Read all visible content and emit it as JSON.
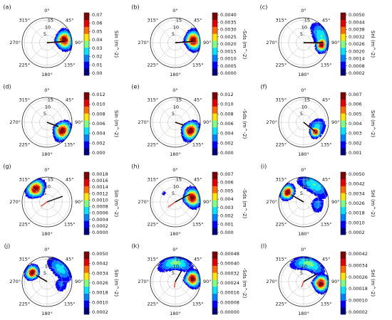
{
  "direction_labels": [
    "0°",
    "45°",
    "90°",
    "135°",
    "180°",
    "225°",
    "270°",
    "315°"
  ],
  "radius_labels": [
    "5",
    "10",
    "15"
  ],
  "colormap": [
    "#00007f",
    "#0000ff",
    "#0080ff",
    "#00e5ff",
    "#7fff7f",
    "#ffe500",
    "#ff6a00",
    "#e50000",
    "#7f0000"
  ],
  "chart_data": [
    {
      "type": "polar-contour",
      "panel": "(a)",
      "colorbar_label": "Sin (m^-2)",
      "colorbar_ticks": [
        "0.07",
        "0.06",
        "0.05",
        "0.04",
        "0.03",
        "0.02",
        "0.01",
        "0.00"
      ],
      "blobs": [
        {
          "dir": 80,
          "r": 11,
          "sdir": 18,
          "sr": 3.2,
          "peak": 1.0
        }
      ],
      "vectors": [
        {
          "dir": 88,
          "r": 11,
          "color": "#e04b3a"
        },
        {
          "dir": 86,
          "r": 11,
          "color": "#000000"
        }
      ]
    },
    {
      "type": "polar-contour",
      "panel": "(b)",
      "colorbar_label": "-Sds (m^-2)",
      "colorbar_ticks": [
        "0.0040",
        "0.0035",
        "0.0030",
        "0.0025",
        "0.0020",
        "0.0015",
        "0.0010",
        "0.0005",
        "0.0000"
      ],
      "blobs": [
        {
          "dir": 82,
          "r": 11.5,
          "sdir": 18,
          "sr": 3.2,
          "peak": 1.0
        }
      ],
      "vectors": [
        {
          "dir": 88,
          "r": 12,
          "color": "#e04b3a"
        },
        {
          "dir": 86,
          "r": 12,
          "color": "#000000"
        }
      ]
    },
    {
      "type": "polar-contour",
      "panel": "(c)",
      "colorbar_label": "Snl (m^-2)",
      "colorbar_ticks": [
        "0.0050",
        "0.0044",
        "0.0038",
        "0.0032",
        "0.0026",
        "0.0020",
        "0.0014",
        "0.0008",
        "0.0002"
      ],
      "blobs": [
        {
          "dir": 95,
          "r": 11.5,
          "sdir": 14,
          "sr": 2.2,
          "peak": 1.0
        },
        {
          "dir": 70,
          "r": 12,
          "sdir": 30,
          "sr": 3.5,
          "peak": 0.45
        }
      ],
      "vectors": [
        {
          "dir": 92,
          "r": 13,
          "color": "#e04b3a"
        },
        {
          "dir": 90,
          "r": 13,
          "color": "#000000"
        }
      ]
    },
    {
      "type": "polar-contour",
      "panel": "(d)",
      "colorbar_label": "Sin (m^-2)",
      "colorbar_ticks": [
        "0.012",
        "0.010",
        "0.008",
        "0.006",
        "0.004",
        "0.002",
        "0.000"
      ],
      "blobs": [
        {
          "dir": 118,
          "r": 11,
          "sdir": 18,
          "sr": 3.2,
          "peak": 1.0
        }
      ],
      "vectors": [
        {
          "dir": 112,
          "r": 8,
          "color": "#e04b3a"
        },
        {
          "dir": 110,
          "r": 8,
          "color": "#000000"
        }
      ]
    },
    {
      "type": "polar-contour",
      "panel": "(e)",
      "colorbar_label": "-Sds (m^-2)",
      "colorbar_ticks": [
        "0.012",
        "0.010",
        "0.008",
        "0.006",
        "0.004",
        "0.002",
        "0.000"
      ],
      "blobs": [
        {
          "dir": 118,
          "r": 11,
          "sdir": 18,
          "sr": 3.2,
          "peak": 1.0
        }
      ],
      "vectors": [
        {
          "dir": 110,
          "r": 6,
          "color": "#e04b3a"
        },
        {
          "dir": 108,
          "r": 6,
          "color": "#000000"
        }
      ]
    },
    {
      "type": "polar-contour",
      "panel": "(f)",
      "colorbar_label": "Snl (m^-2)",
      "colorbar_ticks": [
        "0.007",
        "0.006",
        "0.005",
        "0.004",
        "0.003",
        "0.002",
        "0.001"
      ],
      "blobs": [
        {
          "dir": 128,
          "r": 9.5,
          "sdir": 12,
          "sr": 2.2,
          "peak": 1.0
        },
        {
          "dir": 108,
          "r": 9,
          "sdir": 22,
          "sr": 3.5,
          "peak": 0.4
        }
      ],
      "vectors": [
        {
          "dir": 130,
          "r": 9,
          "color": "#e04b3a"
        },
        {
          "dir": 128,
          "r": 9,
          "color": "#000000"
        }
      ]
    },
    {
      "type": "polar-contour",
      "panel": "(g)",
      "colorbar_label": "Sin (m^-2)",
      "colorbar_ticks": [
        "0.0018",
        "0.0016",
        "0.0014",
        "0.0012",
        "0.0010",
        "0.0008",
        "0.0006",
        "0.0004",
        "0.0002",
        "0.0000"
      ],
      "blobs": [
        {
          "dir": 318,
          "r": 11,
          "sdir": 18,
          "sr": 3.2,
          "peak": 1.0
        }
      ],
      "vectors": [
        {
          "dir": 235,
          "r": 5,
          "color": "#e04b3a"
        },
        {
          "dir": 70,
          "r": 11,
          "color": "#000000"
        }
      ]
    },
    {
      "type": "polar-contour",
      "panel": "(h)",
      "colorbar_label": "-Sds (m^-2)",
      "colorbar_ticks": [
        "0.007",
        "0.006",
        "0.005",
        "0.004",
        "0.003",
        "0.002",
        "0.001",
        "0.000"
      ],
      "blobs": [
        {
          "dir": 75,
          "r": 11,
          "sdir": 18,
          "sr": 3.2,
          "peak": 1.0
        },
        {
          "dir": 305,
          "r": 9,
          "sdir": 8,
          "sr": 1.2,
          "peak": 0.2
        }
      ],
      "vectors": [
        {
          "dir": 235,
          "r": 6,
          "color": "#e04b3a"
        },
        {
          "dir": 62,
          "r": 11,
          "color": "#000000"
        }
      ]
    },
    {
      "type": "polar-contour",
      "panel": "(i)",
      "colorbar_label": "Snl (m^-2)",
      "colorbar_ticks": [
        "0.0050",
        "0.0042",
        "0.0034",
        "0.0026",
        "0.0018",
        "0.0010",
        "0.0002"
      ],
      "blobs": [
        {
          "dir": 300,
          "r": 12,
          "sdir": 14,
          "sr": 2.5,
          "peak": 1.0
        },
        {
          "dir": 30,
          "r": 13,
          "sdir": 30,
          "sr": 3.5,
          "peak": 0.45
        },
        {
          "dir": 100,
          "r": 9,
          "sdir": 22,
          "sr": 3,
          "peak": 0.3
        }
      ],
      "vectors": [
        {
          "dir": 300,
          "r": 10,
          "color": "#e04b3a"
        },
        {
          "dir": 300,
          "r": 9,
          "color": "#000000"
        }
      ]
    },
    {
      "type": "polar-contour",
      "panel": "(j)",
      "colorbar_label": "Sin (m^-2)",
      "colorbar_ticks": [
        "0.0050",
        "0.0042",
        "0.0034",
        "0.0026",
        "0.0018",
        "0.0010",
        "0.0002"
      ],
      "blobs": [
        {
          "dir": 300,
          "r": 11,
          "sdir": 14,
          "sr": 2.5,
          "peak": 1.0
        },
        {
          "dir": 45,
          "r": 12,
          "sdir": 30,
          "sr": 3.5,
          "peak": 0.4
        },
        {
          "dir": 100,
          "r": 9,
          "sdir": 22,
          "sr": 3,
          "peak": 0.25
        }
      ],
      "vectors": [
        {
          "dir": 300,
          "r": 9,
          "color": "#e04b3a"
        },
        {
          "dir": 300,
          "r": 8,
          "color": "#000000"
        }
      ]
    },
    {
      "type": "polar-contour",
      "panel": "(k)",
      "colorbar_label": "-Sds (m^-2)",
      "colorbar_ticks": [
        "0.00048",
        "0.00040",
        "0.00032",
        "0.00024",
        "0.00016",
        "0.00008",
        "0.00000"
      ],
      "blobs": [
        {
          "dir": 80,
          "r": 11,
          "sdir": 16,
          "sr": 3,
          "peak": 1.0
        },
        {
          "dir": 0,
          "r": 12,
          "sdir": 35,
          "sr": 3,
          "peak": 0.5
        }
      ],
      "vectors": [
        {
          "dir": 190,
          "r": 4,
          "color": "#e04b3a"
        },
        {
          "dir": 30,
          "r": 8,
          "color": "#000000"
        }
      ]
    },
    {
      "type": "polar-contour",
      "panel": "(l)",
      "colorbar_label": "Snl (m^-2)",
      "colorbar_ticks": [
        "0.00042",
        "0.00034",
        "0.00026",
        "0.00018",
        "0.00010",
        "0.00002"
      ],
      "blobs": [
        {
          "dir": 95,
          "r": 11,
          "sdir": 16,
          "sr": 3,
          "peak": 1.0
        },
        {
          "dir": 15,
          "r": 12,
          "sdir": 35,
          "sr": 3,
          "peak": 0.5
        }
      ],
      "vectors": [
        {
          "dir": 200,
          "r": 4,
          "color": "#e04b3a"
        },
        {
          "dir": 60,
          "r": 10,
          "color": "#000000"
        }
      ]
    }
  ]
}
